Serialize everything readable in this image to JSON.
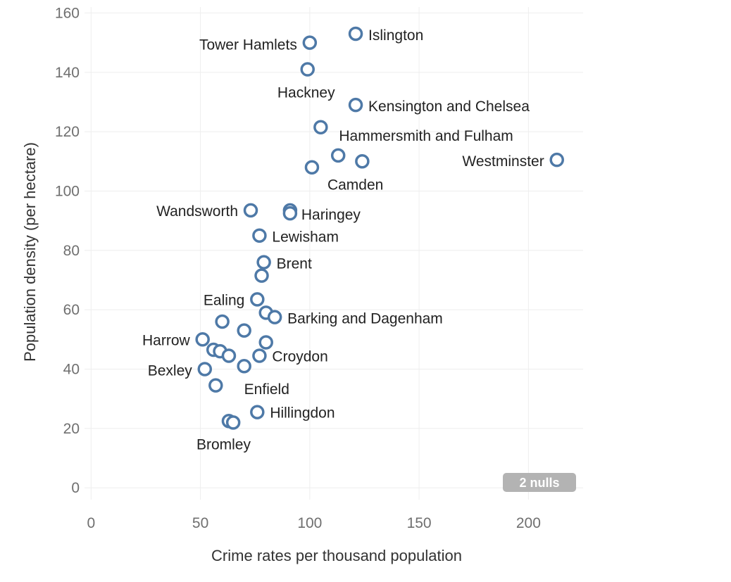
{
  "chart_data": {
    "type": "scatter",
    "xlabel": "Crime rates per thousand population",
    "ylabel": "Population density (per hectare)",
    "xlim": [
      -3,
      225
    ],
    "ylim": [
      -4,
      162
    ],
    "x_ticks": [
      0,
      50,
      100,
      150,
      200
    ],
    "y_ticks": [
      0,
      20,
      40,
      60,
      80,
      100,
      120,
      140,
      160
    ],
    "grid": true,
    "marker_color": "#4e79a7",
    "nulls_badge": "2 nulls",
    "points": [
      {
        "x": 121,
        "y": 153,
        "label": "Islington"
      },
      {
        "x": 100,
        "y": 150,
        "label": "Tower Hamlets"
      },
      {
        "x": 99,
        "y": 141,
        "label": "Hackney"
      },
      {
        "x": 121,
        "y": 129,
        "label": "Kensington and Chelsea"
      },
      {
        "x": 105,
        "y": 121.5,
        "label": "Hammersmith and Fulham"
      },
      {
        "x": 113,
        "y": 112,
        "label": ""
      },
      {
        "x": 124,
        "y": 110,
        "label": ""
      },
      {
        "x": 213,
        "y": 110.5,
        "label": "Westminster"
      },
      {
        "x": 101,
        "y": 108,
        "label": "Camden"
      },
      {
        "x": 73,
        "y": 93.5,
        "label": "Wandsworth"
      },
      {
        "x": 91,
        "y": 93.5,
        "label": ""
      },
      {
        "x": 91,
        "y": 92.5,
        "label": "Haringey"
      },
      {
        "x": 77,
        "y": 85,
        "label": "Lewisham"
      },
      {
        "x": 79,
        "y": 76,
        "label": "Brent"
      },
      {
        "x": 78,
        "y": 71.5,
        "label": ""
      },
      {
        "x": 76,
        "y": 63.5,
        "label": "Ealing"
      },
      {
        "x": 80,
        "y": 59,
        "label": ""
      },
      {
        "x": 84,
        "y": 57.5,
        "label": "Barking and Dagenham"
      },
      {
        "x": 60,
        "y": 56,
        "label": ""
      },
      {
        "x": 70,
        "y": 53,
        "label": ""
      },
      {
        "x": 51,
        "y": 50,
        "label": "Harrow"
      },
      {
        "x": 80,
        "y": 49,
        "label": ""
      },
      {
        "x": 56,
        "y": 46.5,
        "label": ""
      },
      {
        "x": 59,
        "y": 46,
        "label": ""
      },
      {
        "x": 63,
        "y": 44.5,
        "label": ""
      },
      {
        "x": 77,
        "y": 44.5,
        "label": "Croydon"
      },
      {
        "x": 70,
        "y": 41,
        "label": "Enfield"
      },
      {
        "x": 52,
        "y": 40,
        "label": "Bexley"
      },
      {
        "x": 57,
        "y": 34.5,
        "label": ""
      },
      {
        "x": 76,
        "y": 25.5,
        "label": "Hillingdon"
      },
      {
        "x": 63,
        "y": 22.5,
        "label": ""
      },
      {
        "x": 65,
        "y": 22,
        "label": "Bromley"
      }
    ]
  }
}
